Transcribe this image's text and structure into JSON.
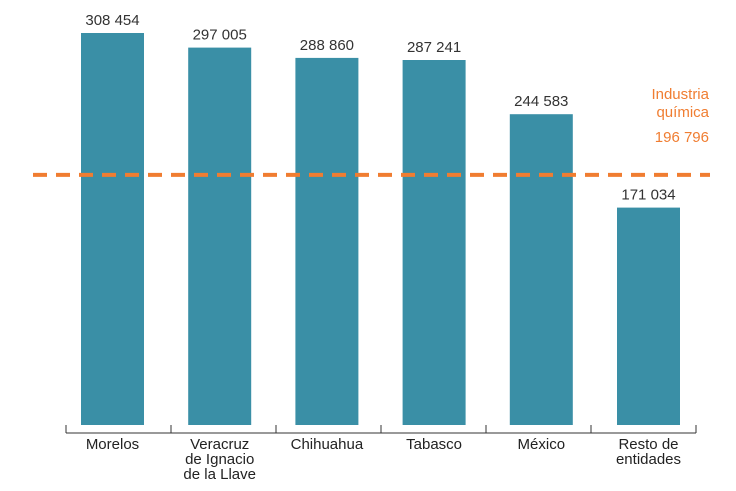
{
  "chart_data": {
    "type": "bar",
    "categories": [
      [
        "Morelos"
      ],
      [
        "Veracruz",
        "de Ignacio",
        "de la Llave"
      ],
      [
        "Chihuahua"
      ],
      [
        "Tabasco"
      ],
      [
        "México"
      ],
      [
        "Resto de",
        "entidades"
      ]
    ],
    "values": [
      308454,
      297005,
      288860,
      287241,
      244583,
      171034
    ],
    "value_labels": [
      "308 454",
      "297 005",
      "288 860",
      "287 241",
      "244 583",
      "171 034"
    ],
    "ylim": [
      0,
      320000
    ],
    "grid": false,
    "colors": {
      "bar": "#3a8fa6",
      "reference": "#f07d31",
      "axis": "#333333"
    },
    "reference_line": {
      "value": 196796,
      "label_lines": [
        "Industria",
        "química"
      ],
      "value_label": "196 796",
      "style": "dashed"
    }
  }
}
